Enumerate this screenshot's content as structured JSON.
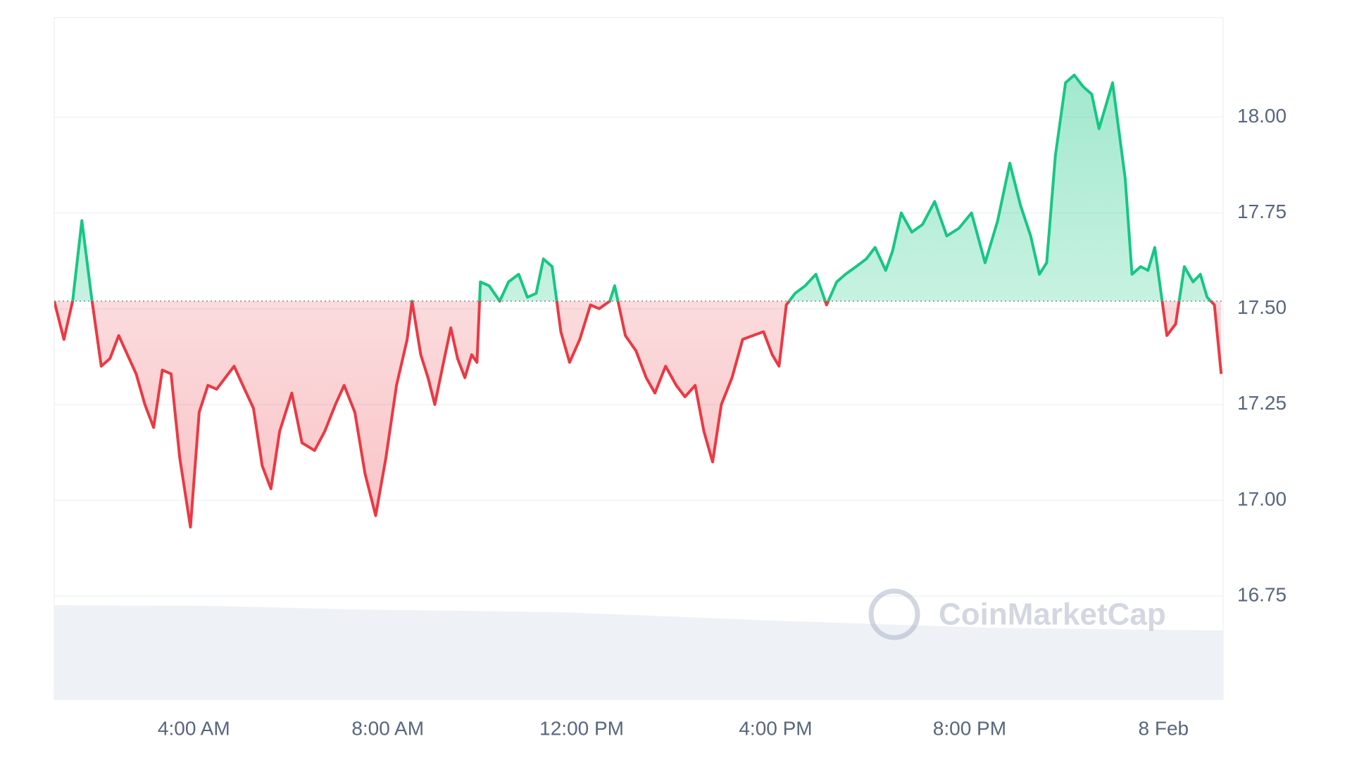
{
  "chart_data": {
    "type": "line",
    "x": [
      1.12,
      1.32,
      1.5,
      1.69,
      1.89,
      2.09,
      2.27,
      2.45,
      2.63,
      2.81,
      2.99,
      3.17,
      3.35,
      3.53,
      3.71,
      3.93,
      4.11,
      4.29,
      4.47,
      4.65,
      4.83,
      5.01,
      5.23,
      5.41,
      5.59,
      5.77,
      6.02,
      6.23,
      6.49,
      6.7,
      6.92,
      7.1,
      7.32,
      7.53,
      7.75,
      7.96,
      8.18,
      8.4,
      8.5,
      8.68,
      8.83,
      8.97,
      9.15,
      9.3,
      9.44,
      9.59,
      9.73,
      9.84,
      9.91,
      10.09,
      10.31,
      10.49,
      10.7,
      10.88,
      11.06,
      11.21,
      11.39,
      11.57,
      11.75,
      11.96,
      12.18,
      12.36,
      12.58,
      12.68,
      12.9,
      13.12,
      13.33,
      13.51,
      13.73,
      13.95,
      14.13,
      14.34,
      14.52,
      14.7,
      14.88,
      15.1,
      15.32,
      15.53,
      15.75,
      15.93,
      16.07,
      16.22,
      16.4,
      16.61,
      16.83,
      17.05,
      17.26,
      17.44,
      17.66,
      17.87,
      18.05,
      18.27,
      18.41,
      18.59,
      18.81,
      19.03,
      19.28,
      19.53,
      19.78,
      20.04,
      20.32,
      20.58,
      20.83,
      21.05,
      21.26,
      21.44,
      21.59,
      21.77,
      21.98,
      22.16,
      22.34,
      22.52,
      22.67,
      22.95,
      23.21,
      23.35,
      23.53,
      23.68,
      23.82,
      24.07,
      24.25,
      24.43,
      24.61,
      24.76,
      24.9,
      25.05,
      25.19
    ],
    "values": [
      17.52,
      17.42,
      17.52,
      17.73,
      17.53,
      17.35,
      17.37,
      17.43,
      17.38,
      17.33,
      17.25,
      17.19,
      17.34,
      17.33,
      17.11,
      16.93,
      17.23,
      17.3,
      17.29,
      17.32,
      17.35,
      17.3,
      17.24,
      17.09,
      17.03,
      17.18,
      17.28,
      17.15,
      17.13,
      17.18,
      17.25,
      17.3,
      17.23,
      17.07,
      16.96,
      17.11,
      17.3,
      17.42,
      17.52,
      17.38,
      17.32,
      17.25,
      17.36,
      17.45,
      17.37,
      17.32,
      17.38,
      17.36,
      17.57,
      17.56,
      17.52,
      17.57,
      17.59,
      17.53,
      17.54,
      17.63,
      17.61,
      17.44,
      17.36,
      17.42,
      17.51,
      17.5,
      17.52,
      17.56,
      17.43,
      17.39,
      17.32,
      17.28,
      17.35,
      17.3,
      17.27,
      17.3,
      17.18,
      17.1,
      17.25,
      17.32,
      17.42,
      17.43,
      17.44,
      17.38,
      17.35,
      17.51,
      17.54,
      17.56,
      17.59,
      17.51,
      17.57,
      17.59,
      17.61,
      17.63,
      17.66,
      17.6,
      17.65,
      17.75,
      17.7,
      17.72,
      17.78,
      17.69,
      17.71,
      17.75,
      17.62,
      17.73,
      17.88,
      17.77,
      17.69,
      17.59,
      17.62,
      17.9,
      18.09,
      18.11,
      18.08,
      18.06,
      17.97,
      18.09,
      17.84,
      17.59,
      17.61,
      17.6,
      17.66,
      17.43,
      17.46,
      17.61,
      17.57,
      17.59,
      17.53,
      17.51,
      17.33
    ],
    "baseline": 17.52,
    "up_color": "#16c784",
    "down_color": "#ea3943",
    "xlim": [
      1.12,
      25.23
    ],
    "xticks": [
      {
        "value": 4,
        "label": "4:00 AM"
      },
      {
        "value": 8,
        "label": "8:00 AM"
      },
      {
        "value": 12,
        "label": "12:00 PM"
      },
      {
        "value": 16,
        "label": "4:00 PM"
      },
      {
        "value": 20,
        "label": "8:00 PM"
      },
      {
        "value": 24,
        "label": "8 Feb"
      }
    ],
    "ylim": [
      16.48,
      18.26
    ],
    "yticks": [
      16.75,
      {
        "value": 17,
        "label": "17.00"
      },
      17.25,
      {
        "value": 17.5,
        "label": "17.50"
      },
      17.75,
      {
        "value": 18,
        "label": "18.00"
      }
    ],
    "grid": true,
    "watermark": "CoinMarketCap"
  }
}
